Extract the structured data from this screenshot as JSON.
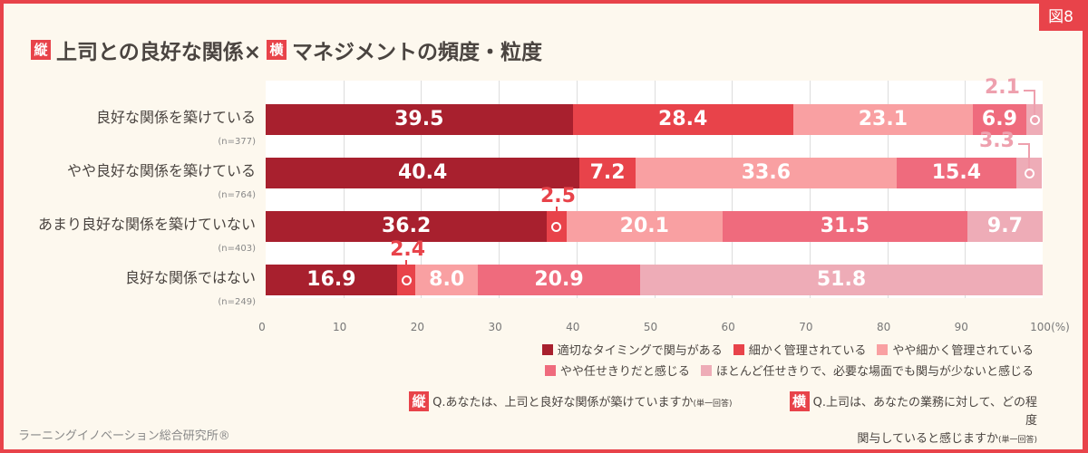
{
  "figure_label": "図8",
  "title": {
    "tag_v": "縦",
    "part1": "上司との良好な関係×",
    "tag_h": "横",
    "part2": "マネジメントの頻度・粒度"
  },
  "chart_data": {
    "type": "bar",
    "orientation": "horizontal-stacked",
    "xlim": [
      0,
      100
    ],
    "x_ticks": [
      "0",
      "10",
      "20",
      "30",
      "40",
      "50",
      "60",
      "70",
      "80",
      "90",
      "100(%)"
    ],
    "grid": true,
    "legend_position": "bottom-right",
    "categories": [
      {
        "label": "良好な関係を築けている",
        "n": "(n=377)"
      },
      {
        "label": "やや良好な関係を築けている",
        "n": "(n=764)"
      },
      {
        "label": "あまり良好な関係を築けていない",
        "n": "(n=403)"
      },
      {
        "label": "良好な関係ではない",
        "n": "(n=249)"
      }
    ],
    "series": [
      {
        "name": "適切なタイミングで関与がある",
        "color": "#a8202e",
        "values": [
          39.5,
          40.4,
          36.2,
          16.9
        ]
      },
      {
        "name": "細かく管理されている",
        "color": "#e8434a",
        "values": [
          28.4,
          7.2,
          2.5,
          2.4
        ]
      },
      {
        "name": "やや細かく管理されている",
        "color": "#f9a0a2",
        "values": [
          23.1,
          33.6,
          20.1,
          8.0
        ]
      },
      {
        "name": "やや任せきりだと感じる",
        "color": "#ef6b7d",
        "values": [
          6.9,
          15.4,
          31.5,
          20.9
        ]
      },
      {
        "name": "ほとんど任せきりで、必要な場面でも関与が少ないと感じる",
        "color": "#eeacb7",
        "values": [
          2.1,
          3.3,
          9.7,
          51.8
        ]
      }
    ]
  },
  "questions": {
    "v": {
      "tag": "縦",
      "text": "Q.あなたは、上司と良好な関係が築けていますか",
      "note": "(単一回答)"
    },
    "h": {
      "tag": "横",
      "line1": "Q.上司は、あなたの業務に対して、どの程度",
      "line2": "関与していると感じますか",
      "note": "(単一回答)"
    }
  },
  "credit": "ラーニングイノベーション総合研究所®"
}
